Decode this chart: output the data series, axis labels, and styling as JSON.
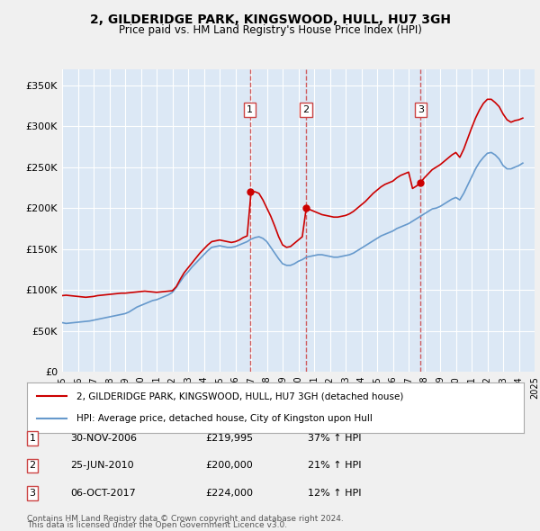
{
  "title": "2, GILDERIDGE PARK, KINGSWOOD, HULL, HU7 3GH",
  "subtitle": "Price paid vs. HM Land Registry's House Price Index (HPI)",
  "legend_label_red": "2, GILDERIDGE PARK, KINGSWOOD, HULL, HU7 3GH (detached house)",
  "legend_label_blue": "HPI: Average price, detached house, City of Kingston upon Hull",
  "footer1": "Contains HM Land Registry data © Crown copyright and database right 2024.",
  "footer2": "This data is licensed under the Open Government Licence v3.0.",
  "transactions": [
    {
      "num": 1,
      "date": "30-NOV-2006",
      "price": "£219,995",
      "hpi": "37% ↑ HPI"
    },
    {
      "num": 2,
      "date": "25-JUN-2010",
      "price": "£200,000",
      "hpi": "21% ↑ HPI"
    },
    {
      "num": 3,
      "date": "06-OCT-2017",
      "price": "£224,000",
      "hpi": "12% ↑ HPI"
    }
  ],
  "vline_dates": [
    2006.92,
    2010.48,
    2017.77
  ],
  "ylim": [
    0,
    370000
  ],
  "yticks": [
    0,
    50000,
    100000,
    150000,
    200000,
    250000,
    300000,
    350000
  ],
  "bg_color": "#e8f0f8",
  "plot_bg_color": "#dce8f5",
  "grid_color": "#ffffff",
  "red_color": "#cc0000",
  "blue_color": "#6699cc",
  "vline_color": "#cc4444",
  "hpi_data": {
    "years": [
      1995.0,
      1995.25,
      1995.5,
      1995.75,
      1996.0,
      1996.25,
      1996.5,
      1996.75,
      1997.0,
      1997.25,
      1997.5,
      1997.75,
      1998.0,
      1998.25,
      1998.5,
      1998.75,
      1999.0,
      1999.25,
      1999.5,
      1999.75,
      2000.0,
      2000.25,
      2000.5,
      2000.75,
      2001.0,
      2001.25,
      2001.5,
      2001.75,
      2002.0,
      2002.25,
      2002.5,
      2002.75,
      2003.0,
      2003.25,
      2003.5,
      2003.75,
      2004.0,
      2004.25,
      2004.5,
      2004.75,
      2005.0,
      2005.25,
      2005.5,
      2005.75,
      2006.0,
      2006.25,
      2006.5,
      2006.75,
      2007.0,
      2007.25,
      2007.5,
      2007.75,
      2008.0,
      2008.25,
      2008.5,
      2008.75,
      2009.0,
      2009.25,
      2009.5,
      2009.75,
      2010.0,
      2010.25,
      2010.5,
      2010.75,
      2011.0,
      2011.25,
      2011.5,
      2011.75,
      2012.0,
      2012.25,
      2012.5,
      2012.75,
      2013.0,
      2013.25,
      2013.5,
      2013.75,
      2014.0,
      2014.25,
      2014.5,
      2014.75,
      2015.0,
      2015.25,
      2015.5,
      2015.75,
      2016.0,
      2016.25,
      2016.5,
      2016.75,
      2017.0,
      2017.25,
      2017.5,
      2017.75,
      2018.0,
      2018.25,
      2018.5,
      2018.75,
      2019.0,
      2019.25,
      2019.5,
      2019.75,
      2020.0,
      2020.25,
      2020.5,
      2020.75,
      2021.0,
      2021.25,
      2021.5,
      2021.75,
      2022.0,
      2022.25,
      2022.5,
      2022.75,
      2023.0,
      2023.25,
      2023.5,
      2023.75,
      2024.0,
      2024.25
    ],
    "hpi_values": [
      60000,
      59000,
      59500,
      60000,
      60500,
      61000,
      61500,
      62000,
      63000,
      64000,
      65000,
      66000,
      67000,
      68000,
      69000,
      70000,
      71000,
      73000,
      76000,
      79000,
      81000,
      83000,
      85000,
      87000,
      88000,
      90000,
      92000,
      94000,
      97000,
      103000,
      110000,
      117000,
      122000,
      128000,
      133000,
      138000,
      143000,
      148000,
      152000,
      153000,
      154000,
      153000,
      152000,
      152000,
      153000,
      155000,
      157000,
      159000,
      162000,
      164000,
      165000,
      163000,
      159000,
      152000,
      145000,
      138000,
      132000,
      130000,
      130000,
      132000,
      135000,
      137000,
      140000,
      141000,
      142000,
      143000,
      143000,
      142000,
      141000,
      140000,
      140000,
      141000,
      142000,
      143000,
      145000,
      148000,
      151000,
      154000,
      157000,
      160000,
      163000,
      166000,
      168000,
      170000,
      172000,
      175000,
      177000,
      179000,
      181000,
      184000,
      187000,
      190000,
      193000,
      196000,
      199000,
      200000,
      202000,
      205000,
      208000,
      211000,
      213000,
      210000,
      218000,
      228000,
      238000,
      248000,
      256000,
      262000,
      267000,
      268000,
      265000,
      260000,
      252000,
      248000,
      248000,
      250000,
      252000,
      255000
    ],
    "red_values": [
      93000,
      93500,
      93000,
      92500,
      92000,
      91500,
      91000,
      91500,
      92000,
      93000,
      93500,
      94000,
      94500,
      95000,
      95500,
      96000,
      96000,
      96500,
      97000,
      97500,
      98000,
      98500,
      98000,
      97500,
      97000,
      97500,
      98000,
      98500,
      99000,
      104000,
      113000,
      121000,
      127000,
      133000,
      139000,
      145000,
      150000,
      155000,
      159000,
      160000,
      161000,
      160000,
      159000,
      158000,
      159000,
      161000,
      164000,
      166000,
      219995,
      220000,
      218000,
      210000,
      200000,
      190000,
      178000,
      165000,
      155000,
      152000,
      153000,
      157000,
      161000,
      165000,
      200000,
      198000,
      196000,
      194000,
      192000,
      191000,
      190000,
      189000,
      189000,
      190000,
      191000,
      193000,
      196000,
      200000,
      204000,
      208000,
      213000,
      218000,
      222000,
      226000,
      229000,
      231000,
      233000,
      237000,
      240000,
      242000,
      244000,
      224000,
      227000,
      231000,
      237000,
      242000,
      247000,
      250000,
      253000,
      257000,
      261000,
      265000,
      268000,
      262000,
      272000,
      285000,
      298000,
      310000,
      320000,
      328000,
      333000,
      333000,
      329000,
      324000,
      315000,
      308000,
      305000,
      307000,
      308000,
      310000
    ]
  }
}
